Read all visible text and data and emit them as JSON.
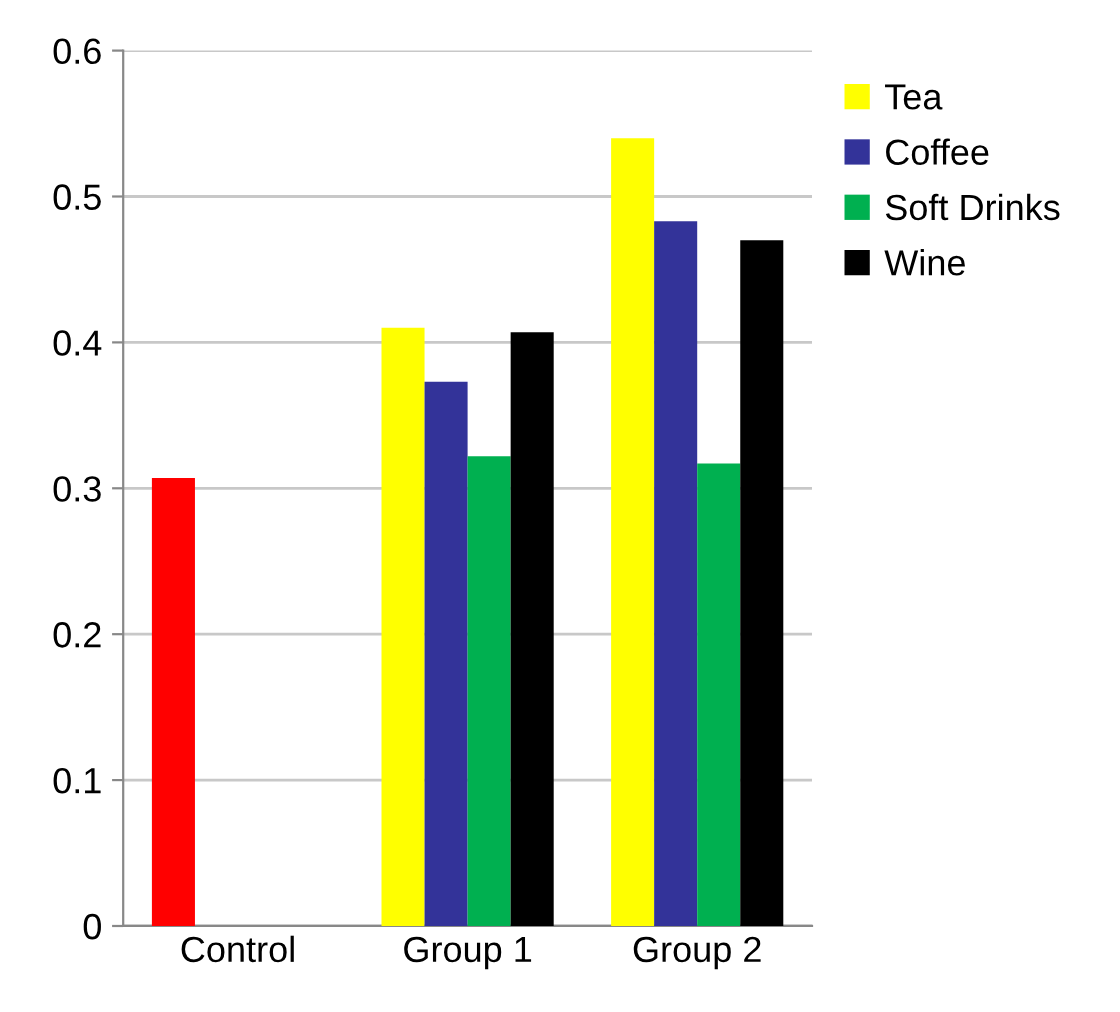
{
  "chart_data": {
    "type": "bar",
    "categories": [
      "Control",
      "Group 1",
      "Group 2"
    ],
    "series": [
      {
        "name": "Tea",
        "color": "#ffff00",
        "colors": [
          "#ff0000",
          "#ffff00",
          "#ffff00"
        ],
        "values": [
          0.307,
          0.41,
          0.54
        ]
      },
      {
        "name": "Coffee",
        "color": "#333399",
        "values": [
          null,
          0.373,
          0.483
        ]
      },
      {
        "name": "Soft Drinks",
        "color": "#00b050",
        "values": [
          null,
          0.322,
          0.317
        ]
      },
      {
        "name": "Wine",
        "color": "#000000",
        "values": [
          null,
          0.407,
          0.47
        ]
      }
    ],
    "ylim": [
      0,
      0.6
    ],
    "yticks": [
      0,
      0.1,
      0.2,
      0.3,
      0.4,
      0.5,
      0.6
    ],
    "grid": "y",
    "legend": "top right"
  }
}
